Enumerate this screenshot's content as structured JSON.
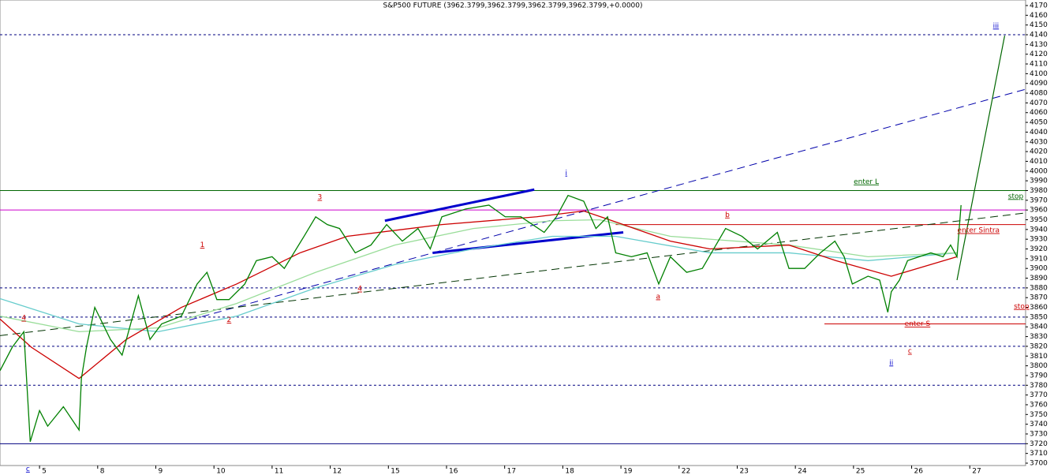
{
  "chart_data": {
    "type": "line",
    "title": "S&P500 FUTURE (3962.3799,3962.3799,3962.3799,3962.3799,+0.0000)",
    "xlim": [
      -0.68,
      16.96
    ],
    "xticks": [
      {
        "value": 0,
        "label": "5"
      },
      {
        "value": 1,
        "label": "8"
      },
      {
        "value": 2,
        "label": "9"
      },
      {
        "value": 3,
        "label": "10"
      },
      {
        "value": 4,
        "label": "11"
      },
      {
        "value": 5,
        "label": "12"
      },
      {
        "value": 6,
        "label": "15"
      },
      {
        "value": 7,
        "label": "16"
      },
      {
        "value": 8,
        "label": "17"
      },
      {
        "value": 9,
        "label": "18"
      },
      {
        "value": 10,
        "label": "19"
      },
      {
        "value": 11,
        "label": "22"
      },
      {
        "value": 12,
        "label": "23"
      },
      {
        "value": 13,
        "label": "24"
      },
      {
        "value": 14,
        "label": "25"
      },
      {
        "value": 15,
        "label": "26"
      },
      {
        "value": 16,
        "label": "27"
      }
    ],
    "ylim": [
      3700,
      4170
    ],
    "yticks": [
      3700,
      3710,
      3720,
      3730,
      3740,
      3750,
      3760,
      3770,
      3780,
      3790,
      3800,
      3810,
      3820,
      3830,
      3840,
      3850,
      3860,
      3870,
      3880,
      3890,
      3900,
      3910,
      3920,
      3930,
      3940,
      3950,
      3960,
      3970,
      3980,
      3990,
      4000,
      4010,
      4020,
      4030,
      4040,
      4050,
      4060,
      4070,
      4080,
      4090,
      4100,
      4110,
      4120,
      4130,
      4140,
      4150,
      4160,
      4170
    ],
    "series": [
      {
        "color": "#66cccc",
        "x": [
          -0.68,
          0.68,
          2.04,
          3.39,
          4.75,
          6.11,
          7.46,
          8.82,
          9.91,
          11.53,
          12.89,
          14.25,
          15.78
        ],
        "values": [
          3869,
          3843,
          3835,
          3851,
          3880,
          3904,
          3920,
          3933,
          3933,
          3916,
          3916,
          3908,
          3916
        ]
      },
      {
        "color": "#99dd99",
        "x": [
          -0.68,
          0.68,
          2.04,
          3.39,
          4.75,
          6.11,
          7.46,
          8.82,
          9.63,
          10.85,
          12.89,
          14.25,
          15.78
        ],
        "values": [
          3851,
          3835,
          3839,
          3864,
          3896,
          3924,
          3941,
          3949,
          3950,
          3933,
          3924,
          3912,
          3916
        ]
      },
      {
        "color": "#cc0000",
        "x": [
          -0.68,
          -0.14,
          0.68,
          1.49,
          2.44,
          3.39,
          4.48,
          5.29,
          6.92,
          8.55,
          9.36,
          10.04,
          10.85,
          11.53,
          12.89,
          13.7,
          14.65,
          15.78
        ],
        "values": [
          3848,
          3819,
          3787,
          3827,
          3860,
          3884,
          3916,
          3933,
          3945,
          3953,
          3959,
          3945,
          3928,
          3920,
          3924,
          3908,
          3892,
          3912
        ]
      },
      {
        "color": "#008000",
        "x": [
          -0.68,
          -0.47,
          -0.27,
          -0.16,
          0,
          0.14,
          0.41,
          0.68,
          0.72,
          0.81,
          0.95,
          1.22,
          1.42,
          1.7,
          1.9,
          2.1,
          2.44,
          2.71,
          2.88,
          3.05,
          3.26,
          3.53,
          3.73,
          4,
          4.21,
          4.55,
          4.75,
          4.95,
          5.16,
          5.43,
          5.7,
          5.97,
          6.24,
          6.51,
          6.72,
          6.92,
          7.33,
          7.73,
          8.01,
          8.28,
          8.68,
          8.89,
          9.09,
          9.36,
          9.57,
          9.77,
          9.91,
          10.18,
          10.45,
          10.65,
          10.85,
          11.13,
          11.4,
          11.8,
          12.08,
          12.35,
          12.69,
          12.89,
          13.16,
          13.43,
          13.68,
          13.84,
          13.98,
          14.25,
          14.45,
          14.59,
          14.65,
          14.79,
          14.93,
          15.13,
          15.33,
          15.54,
          15.67,
          15.78,
          15.85
        ],
        "values": [
          3795,
          3819,
          3835,
          3722,
          3754,
          3738,
          3758,
          3734,
          3787,
          3820,
          3860,
          3827,
          3811,
          3872,
          3827,
          3843,
          3851,
          3884,
          3896,
          3868,
          3868,
          3884,
          3908,
          3912,
          3900,
          3933,
          3953,
          3945,
          3941,
          3916,
          3924,
          3945,
          3928,
          3941,
          3920,
          3953,
          3961,
          3965,
          3953,
          3953,
          3937,
          3953,
          3975,
          3969,
          3941,
          3953,
          3916,
          3912,
          3916,
          3884,
          3912,
          3896,
          3900,
          3941,
          3933,
          3920,
          3937,
          3900,
          3900,
          3916,
          3928,
          3912,
          3884,
          3892,
          3888,
          3855,
          3876,
          3888,
          3908,
          3912,
          3916,
          3912,
          3924,
          3912,
          3965
        ]
      }
    ],
    "levels": [
      {
        "value": 4140,
        "color": "#000080",
        "dash": true,
        "from": -0.68
      },
      {
        "value": 3980,
        "color": "#006600",
        "dash": false,
        "from": -0.68
      },
      {
        "value": 3960,
        "color": "#cc00cc",
        "dash": false,
        "from": -0.68
      },
      {
        "value": 3945,
        "color": "#cc0000",
        "dash": false,
        "from": 9.91
      },
      {
        "value": 3880,
        "color": "#000080",
        "dash": true,
        "from": -0.68
      },
      {
        "value": 3850,
        "color": "#000080",
        "dash": true,
        "from": -0.68
      },
      {
        "value": 3843,
        "color": "#cc0000",
        "dash": false,
        "from": 13.5
      },
      {
        "value": 3820,
        "color": "#000080",
        "dash": true,
        "from": -0.68
      },
      {
        "value": 3780,
        "color": "#000080",
        "dash": true,
        "from": -0.68
      },
      {
        "value": 3720,
        "color": "#000080",
        "dash": false,
        "from": -0.68
      }
    ],
    "trendlines": [
      {
        "x": [
          2.58,
          16.96
        ],
        "values": [
          3847,
          4084
        ],
        "color": "#0000aa",
        "dash": true,
        "width": 1
      },
      {
        "x": [
          -0.68,
          16.96
        ],
        "values": [
          3831,
          3957
        ],
        "color": "#003300",
        "dash": true,
        "width": 1
      },
      {
        "x": [
          5.94,
          8.51
        ],
        "values": [
          3949,
          3981
        ],
        "color": "#0000cc",
        "dash": false,
        "width": 3
      },
      {
        "x": [
          6.76,
          10.04
        ],
        "values": [
          3916,
          3937
        ],
        "color": "#0000cc",
        "dash": false,
        "width": 3
      },
      {
        "x": [
          15.78,
          16.6
        ],
        "values": [
          3888,
          4139
        ],
        "color": "#006600",
        "dash": false,
        "width": 1.2
      }
    ],
    "annotations": [
      {
        "text": "iii",
        "x": 16.45,
        "y": 4149,
        "color": "#0000cc"
      },
      {
        "text": "i",
        "x": 9.06,
        "y": 3998,
        "color": "#0000cc"
      },
      {
        "text": "ii",
        "x": 14.65,
        "y": 3803,
        "color": "#0000cc"
      },
      {
        "text": "c",
        "x": -0.2,
        "y": 3694,
        "color": "#0000cc"
      },
      {
        "text": "3",
        "x": 4.82,
        "y": 3973,
        "color": "#cc0000"
      },
      {
        "text": "1",
        "x": 2.8,
        "y": 3924,
        "color": "#cc0000"
      },
      {
        "text": "4",
        "x": 5.51,
        "y": 3879,
        "color": "#cc0000"
      },
      {
        "text": "2",
        "x": 3.26,
        "y": 3847,
        "color": "#cc0000"
      },
      {
        "text": "a",
        "x": 10.64,
        "y": 3871,
        "color": "#cc0000"
      },
      {
        "text": "b",
        "x": 11.83,
        "y": 3955,
        "color": "#cc0000"
      },
      {
        "text": "c",
        "x": 14.97,
        "y": 3815,
        "color": "#cc0000"
      },
      {
        "text": "4",
        "x": -0.27,
        "y": 3849,
        "color": "#cc0000"
      },
      {
        "text": "enter L",
        "x": 14.22,
        "y": 3989,
        "color": "#006600"
      },
      {
        "text": "stop",
        "x": 16.79,
        "y": 3974,
        "color": "#006600"
      },
      {
        "text": "enter Sintra",
        "x": 16.15,
        "y": 3939,
        "color": "#cc0000"
      },
      {
        "text": "stop",
        "x": 16.89,
        "y": 3861,
        "color": "#cc0000"
      },
      {
        "text": "enter S",
        "x": 15.1,
        "y": 3843,
        "color": "#cc0000"
      }
    ]
  }
}
